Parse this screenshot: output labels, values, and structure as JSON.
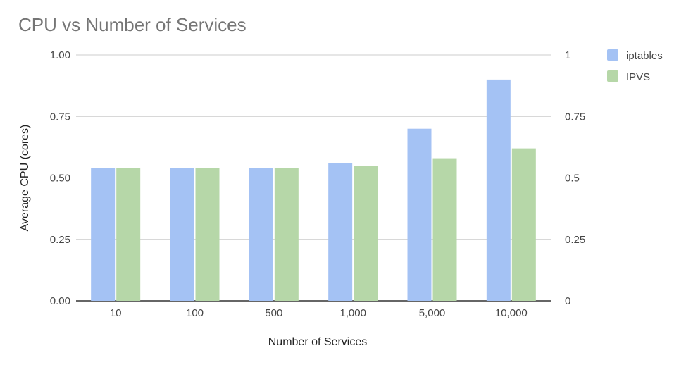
{
  "chart_data": {
    "type": "bar",
    "title": "CPU vs Number of Services",
    "xlabel": "Number of Services",
    "ylabel": "Average CPU (cores)",
    "categories": [
      "10",
      "100",
      "500",
      "1,000",
      "5,000",
      "10,000"
    ],
    "series": [
      {
        "name": "iptables",
        "values": [
          0.54,
          0.54,
          0.54,
          0.56,
          0.7,
          0.9
        ],
        "color": "#a4c2f4"
      },
      {
        "name": "IPVS",
        "values": [
          0.54,
          0.54,
          0.54,
          0.55,
          0.58,
          0.62
        ],
        "color": "#b6d7a8"
      }
    ],
    "ylim": [
      0,
      1
    ],
    "yticks_left": [
      "0.00",
      "0.25",
      "0.50",
      "0.75",
      "1.00"
    ],
    "yticks_right": [
      "0",
      "0.25",
      "0.5",
      "0.75",
      "1"
    ],
    "grid": true,
    "legend_position": "top-right",
    "gridline_color": "#cccccc",
    "axis_color": "#333333"
  }
}
